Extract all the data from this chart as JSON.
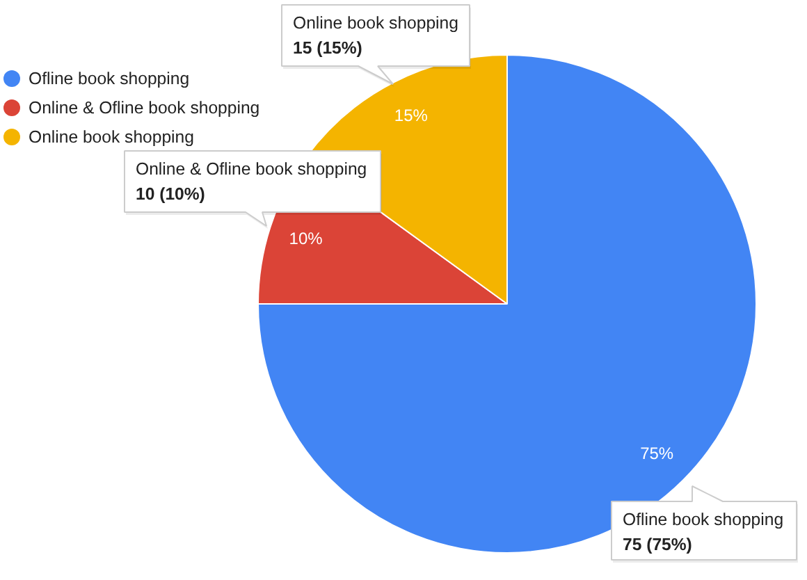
{
  "chart_data": {
    "type": "pie",
    "categories": [
      "Ofline book shopping",
      "Online & Ofline book shopping",
      "Online book shopping"
    ],
    "values": [
      75,
      10,
      15
    ],
    "colors": [
      "#4285f4",
      "#db4437",
      "#f4b400"
    ],
    "value_labels": [
      "75%",
      "10%",
      "15%"
    ],
    "annotations": [
      "75 (75%)",
      "10 (10%)",
      "15 (15%)"
    ],
    "legend": "top left"
  }
}
